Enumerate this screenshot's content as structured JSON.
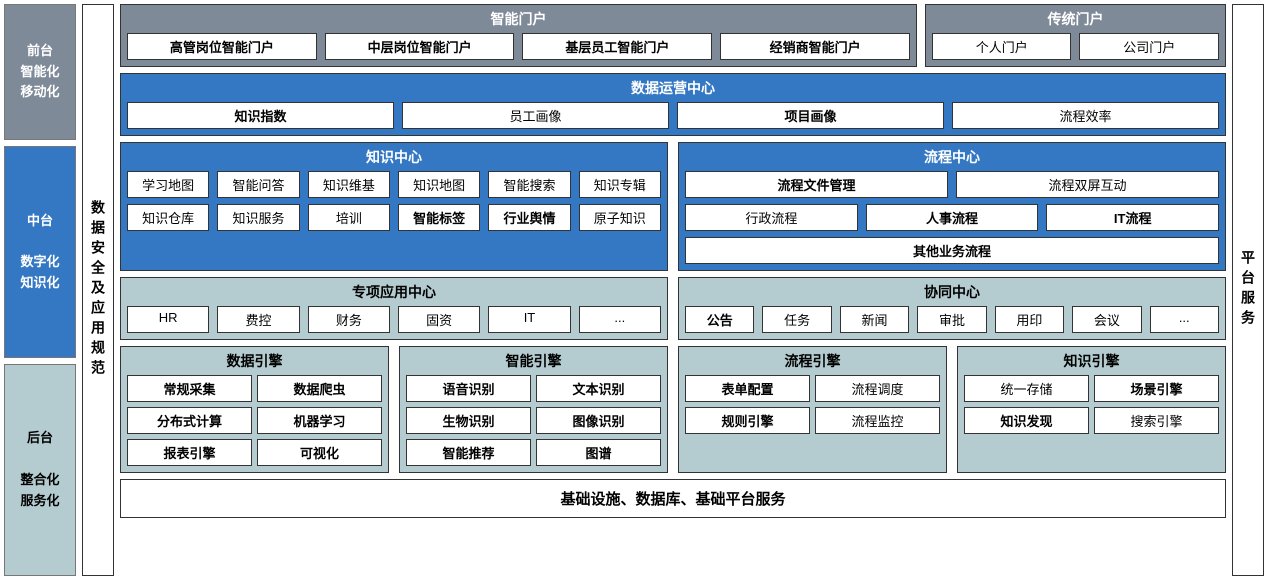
{
  "colors": {
    "gray_panel": "#7f8a98",
    "blue_panel": "#3478c3",
    "teal_panel": "#b4ccd0",
    "cell_bg": "#ffffff",
    "border": "#333333"
  },
  "fontsizes": {
    "title": 14,
    "cell": 13,
    "footer": 15
  },
  "left_rail": {
    "front": "前台\n智能化\n移动化",
    "middle": "中台\n\n数字化\n知识化",
    "back": "后台\n\n整合化\n服务化"
  },
  "security_rail": "数据安全及应用规范",
  "service_rail": "平台服务",
  "portals": {
    "smart": {
      "title": "智能门户",
      "items": [
        "高管岗位智能门户",
        "中层岗位智能门户",
        "基层员工智能门户",
        "经销商智能门户"
      ]
    },
    "traditional": {
      "title": "传统门户",
      "items": [
        "个人门户",
        "公司门户"
      ]
    }
  },
  "ops_center": {
    "title": "数据运营中心",
    "items": [
      "知识指数",
      "员工画像",
      "项目画像",
      "流程效率"
    ],
    "bold": [
      true,
      false,
      true,
      false
    ]
  },
  "knowledge_center": {
    "title": "知识中心",
    "rows": [
      [
        "学习地图",
        "智能问答",
        "知识维基",
        "知识地图",
        "智能搜索",
        "知识专辑"
      ],
      [
        "知识仓库",
        "知识服务",
        "培训",
        "智能标签",
        "行业舆情",
        "原子知识"
      ]
    ],
    "bold_row2": [
      false,
      false,
      false,
      true,
      true,
      false
    ]
  },
  "process_center": {
    "title": "流程中心",
    "row1": [
      "流程文件管理",
      "流程双屏互动"
    ],
    "row1_bold": [
      true,
      false
    ],
    "row2": [
      "行政流程",
      "人事流程",
      "IT流程"
    ],
    "row2_bold": [
      false,
      true,
      true
    ],
    "row3": "其他业务流程",
    "row3_bold": true
  },
  "special_app_center": {
    "title": "专项应用中心",
    "items": [
      "HR",
      "费控",
      "财务",
      "固资",
      "IT",
      "..."
    ]
  },
  "collab_center": {
    "title": "协同中心",
    "items": [
      "公告",
      "任务",
      "新闻",
      "审批",
      "用印",
      "会议",
      "..."
    ],
    "bold": [
      true,
      false,
      false,
      false,
      false,
      false,
      false
    ]
  },
  "engines": {
    "data": {
      "title": "数据引擎",
      "items": [
        "常规采集",
        "数据爬虫",
        "分布式计算",
        "机器学习",
        "报表引擎",
        "可视化"
      ],
      "bold": [
        true,
        true,
        true,
        true,
        true,
        true
      ]
    },
    "smart": {
      "title": "智能引擎",
      "items": [
        "语音识别",
        "文本识别",
        "生物识别",
        "图像识别",
        "智能推荐",
        "图谱"
      ],
      "bold": [
        true,
        true,
        true,
        true,
        true,
        true
      ]
    },
    "process": {
      "title": "流程引擎",
      "items": [
        "表单配置",
        "流程调度",
        "规则引擎",
        "流程监控"
      ],
      "bold": [
        true,
        false,
        true,
        false
      ]
    },
    "knowledge": {
      "title": "知识引擎",
      "items": [
        "统一存储",
        "场景引擎",
        "知识发现",
        "搜索引擎"
      ],
      "bold": [
        false,
        true,
        true,
        false
      ]
    }
  },
  "footer": "基础设施、数据库、基础平台服务"
}
